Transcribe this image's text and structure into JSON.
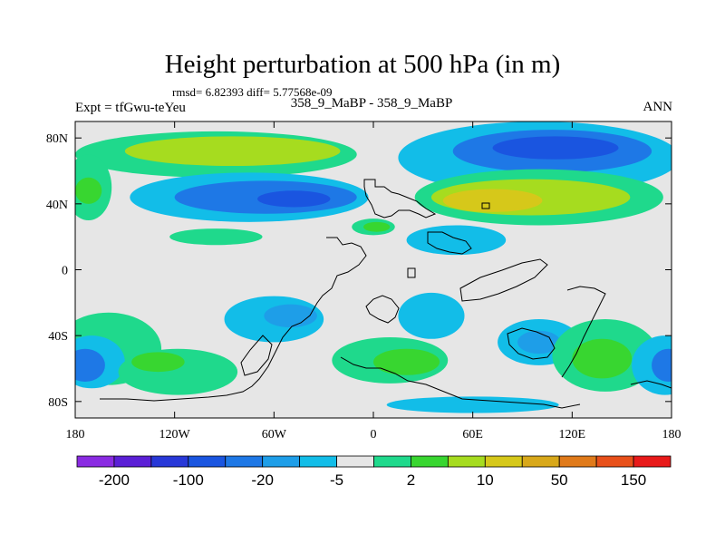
{
  "chart_data": {
    "type": "contour_map",
    "title": "Height perturbation at 500 hPa (in m)",
    "stats": "rmsd= 6.82393 diff= 5.77568e-09",
    "left_label": "Expt = tfGwu-teYeu",
    "center_label": "358_9_MaBP - 358_9_MaBP",
    "right_label": "ANN",
    "xlim": [
      -180,
      180
    ],
    "ylim": [
      -90,
      90
    ],
    "x_ticks": [
      {
        "value": -180,
        "label": "180"
      },
      {
        "value": -120,
        "label": "120W"
      },
      {
        "value": -60,
        "label": "60W"
      },
      {
        "value": 0,
        "label": "0"
      },
      {
        "value": 60,
        "label": "60E"
      },
      {
        "value": 120,
        "label": "120E"
      },
      {
        "value": 180,
        "label": "180"
      }
    ],
    "y_ticks": [
      {
        "value": 80,
        "label": "80N"
      },
      {
        "value": 40,
        "label": "40N"
      },
      {
        "value": 0,
        "label": "0"
      },
      {
        "value": -40,
        "label": "40S"
      },
      {
        "value": -80,
        "label": "80S"
      }
    ],
    "colorbar": {
      "colors": [
        "#8a2be2",
        "#5b1fd6",
        "#2838d8",
        "#1a55e0",
        "#1e78e6",
        "#1e9ee8",
        "#12bde8",
        "#e6e6e6",
        "#1fd98c",
        "#38d630",
        "#a6dc1f",
        "#d6c81a",
        "#d8a81a",
        "#e07a1a",
        "#e8501a",
        "#e81a1a"
      ],
      "labels": [
        {
          "after_box": 1,
          "text": "-200"
        },
        {
          "after_box": 3,
          "text": "-100"
        },
        {
          "after_box": 5,
          "text": "-20"
        },
        {
          "after_box": 7,
          "text": "-5"
        },
        {
          "after_box": 9,
          "text": "2"
        },
        {
          "after_box": 11,
          "text": "10"
        },
        {
          "after_box": 13,
          "text": "50"
        },
        {
          "after_box": 15,
          "text": "150"
        }
      ]
    },
    "features": [
      {
        "name": "arctic-positive-band",
        "lon": -95,
        "lat": 70,
        "rlon": 85,
        "rlat": 14,
        "rot": 0,
        "color": "#1fd98c"
      },
      {
        "name": "arctic-positive-core",
        "lon": -85,
        "lat": 72,
        "rlon": 65,
        "rlat": 9,
        "rot": 0,
        "color": "#a6dc1f"
      },
      {
        "name": "siberia-negative-outer",
        "lon": 100,
        "lat": 68,
        "rlon": 85,
        "rlat": 22,
        "rot": 0,
        "color": "#12bde8"
      },
      {
        "name": "siberia-negative-mid",
        "lon": 108,
        "lat": 72,
        "rlon": 60,
        "rlat": 13,
        "rot": 0,
        "color": "#1e78e6"
      },
      {
        "name": "siberia-negative-core",
        "lon": 110,
        "lat": 74,
        "rlon": 38,
        "rlat": 7,
        "rot": 0,
        "color": "#1a55e0"
      },
      {
        "name": "atlantic-negative-outer",
        "lon": -75,
        "lat": 44,
        "rlon": 72,
        "rlat": 15,
        "rot": 0,
        "color": "#12bde8"
      },
      {
        "name": "atlantic-negative-mid",
        "lon": -65,
        "lat": 44,
        "rlon": 55,
        "rlat": 10,
        "rot": 0,
        "color": "#1e78e6"
      },
      {
        "name": "atlantic-negative-core",
        "lon": -48,
        "lat": 43,
        "rlon": 22,
        "rlat": 5,
        "rot": 0,
        "color": "#1a55e0"
      },
      {
        "name": "asia-positive-outer",
        "lon": 100,
        "lat": 44,
        "rlon": 75,
        "rlat": 17,
        "rot": 0,
        "color": "#1fd98c"
      },
      {
        "name": "asia-positive-mid",
        "lon": 95,
        "lat": 44,
        "rlon": 60,
        "rlat": 11,
        "rot": 0,
        "color": "#a6dc1f"
      },
      {
        "name": "asia-positive-core",
        "lon": 72,
        "lat": 42,
        "rlon": 30,
        "rlat": 7,
        "rot": 0,
        "color": "#d6c81a"
      },
      {
        "name": "west-positive-patch",
        "lon": -172,
        "lat": 50,
        "rlon": 14,
        "rlat": 20,
        "rot": 0,
        "color": "#1fd98c"
      },
      {
        "name": "west-positive-core",
        "lon": -172,
        "lat": 48,
        "rlon": 8,
        "rlat": 8,
        "rot": 0,
        "color": "#38d630"
      },
      {
        "name": "tropical-positive-west",
        "lon": -95,
        "lat": 20,
        "rlon": 28,
        "rlat": 5,
        "rot": 0,
        "color": "#1fd98c"
      },
      {
        "name": "mideast-positive",
        "lon": 0,
        "lat": 26,
        "rlon": 13,
        "rlat": 5,
        "rot": 0,
        "color": "#1fd98c"
      },
      {
        "name": "mideast-positive-core",
        "lon": 2,
        "lat": 26,
        "rlon": 8,
        "rlat": 3,
        "rot": 0,
        "color": "#38d630"
      },
      {
        "name": "india-negative",
        "lon": 50,
        "lat": 18,
        "rlon": 30,
        "rlat": 9,
        "rot": 0,
        "color": "#12bde8"
      },
      {
        "name": "sopac-positive-outer",
        "lon": -160,
        "lat": -48,
        "rlon": 32,
        "rlat": 22,
        "rot": 0,
        "color": "#1fd98c"
      },
      {
        "name": "sopac-negative-outer",
        "lon": -170,
        "lat": -56,
        "rlon": 20,
        "rlat": 16,
        "rot": 0,
        "color": "#12bde8"
      },
      {
        "name": "sopac-negative-core",
        "lon": -174,
        "lat": -58,
        "rlon": 12,
        "rlat": 10,
        "rot": 0,
        "color": "#1e78e6"
      },
      {
        "name": "samerica-negative",
        "lon": -60,
        "lat": -30,
        "rlon": 30,
        "rlat": 14,
        "rot": 0,
        "color": "#12bde8"
      },
      {
        "name": "samerica-negative-core",
        "lon": -50,
        "lat": -28,
        "rlon": 16,
        "rlat": 7,
        "rot": 0,
        "color": "#1e9ee8"
      },
      {
        "name": "satlantic-positive",
        "lon": -118,
        "lat": -62,
        "rlon": 36,
        "rlat": 14,
        "rot": 0,
        "color": "#1fd98c"
      },
      {
        "name": "satlantic-positive-core",
        "lon": -130,
        "lat": -56,
        "rlon": 16,
        "rlat": 6,
        "rot": 0,
        "color": "#38d630"
      },
      {
        "name": "safrica-negative",
        "lon": 35,
        "lat": -28,
        "rlon": 20,
        "rlat": 14,
        "rot": 0,
        "color": "#12bde8"
      },
      {
        "name": "sindian-positive",
        "lon": 10,
        "lat": -55,
        "rlon": 35,
        "rlat": 14,
        "rot": 0,
        "color": "#1fd98c"
      },
      {
        "name": "sindian-positive-core",
        "lon": 20,
        "lat": -56,
        "rlon": 20,
        "rlat": 8,
        "rot": 0,
        "color": "#38d630"
      },
      {
        "name": "australia-negative",
        "lon": 100,
        "lat": -44,
        "rlon": 25,
        "rlat": 14,
        "rot": 0,
        "color": "#12bde8"
      },
      {
        "name": "australia-negative-core",
        "lon": 100,
        "lat": -44,
        "rlon": 13,
        "rlat": 7,
        "rot": 0,
        "color": "#1e9ee8"
      },
      {
        "name": "pacific-positive",
        "lon": 140,
        "lat": -52,
        "rlon": 32,
        "rlat": 22,
        "rot": 0,
        "color": "#1fd98c"
      },
      {
        "name": "pacific-positive-core",
        "lon": 138,
        "lat": -54,
        "rlon": 18,
        "rlat": 12,
        "rot": 0,
        "color": "#38d630"
      },
      {
        "name": "east-negative-outer",
        "lon": 176,
        "lat": -58,
        "rlon": 20,
        "rlat": 18,
        "rot": 0,
        "color": "#12bde8"
      },
      {
        "name": "east-negative-core",
        "lon": 178,
        "lat": -58,
        "rlon": 10,
        "rlat": 10,
        "rot": 0,
        "color": "#1e78e6"
      },
      {
        "name": "antarctic-negative",
        "lon": 60,
        "lat": -82,
        "rlon": 52,
        "rlat": 5,
        "rot": 0,
        "color": "#12bde8"
      }
    ]
  }
}
